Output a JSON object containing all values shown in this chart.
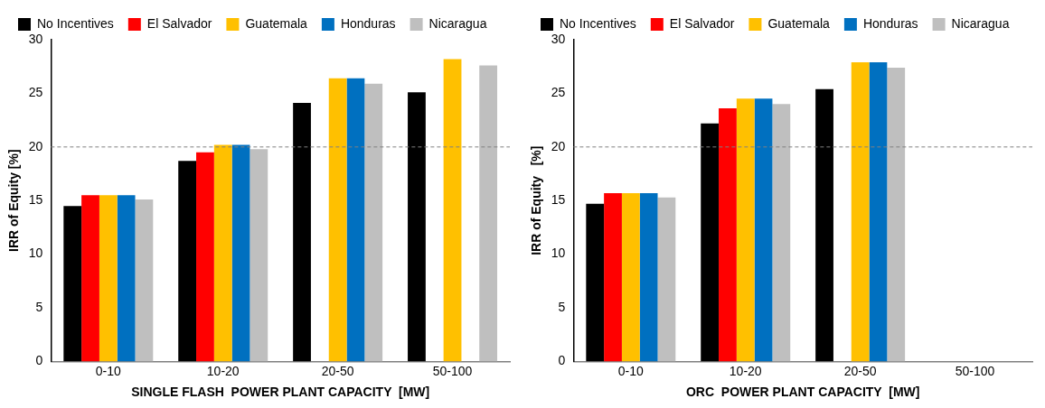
{
  "chart_data": [
    {
      "type": "bar",
      "categories": [
        "0-10",
        "10-20",
        "20-50",
        "50-100"
      ],
      "xlabel": "SINGLE FLASH  POWER PLANT CAPACITY  [MW]",
      "ylabel": "IRR of Equity [%]",
      "ylim": [
        0,
        30
      ],
      "yticks": [
        0,
        5,
        10,
        15,
        20,
        25,
        30
      ],
      "grid": false,
      "legend": "top",
      "series": [
        {
          "name": "No Incentives",
          "color": "#000000",
          "values": [
            14.5,
            18.7,
            24.1,
            25.1
          ]
        },
        {
          "name": "El Salvador",
          "color": "#ff0000",
          "values": [
            15.5,
            19.5,
            null,
            null
          ]
        },
        {
          "name": "Guatemala",
          "color": "#ffc000",
          "values": [
            15.5,
            20.2,
            26.4,
            28.2
          ]
        },
        {
          "name": "Honduras",
          "color": "#0070c0",
          "values": [
            15.5,
            20.2,
            26.4,
            null
          ]
        },
        {
          "name": "Nicaragua",
          "color": "#bfbfbf",
          "values": [
            15.1,
            19.8,
            25.9,
            27.6
          ]
        }
      ],
      "ref_lines": [
        {
          "axis": "y",
          "value": 20,
          "color": "#808080",
          "line_style": "dashed"
        }
      ]
    },
    {
      "type": "bar",
      "categories": [
        "0-10",
        "10-20",
        "20-50",
        "50-100"
      ],
      "xlabel": "ORC  POWER PLANT CAPACITY  [MW]",
      "ylabel": "IRR of Equity   [%]",
      "ylim": [
        0,
        30
      ],
      "yticks": [
        0,
        5,
        10,
        15,
        20,
        25,
        30
      ],
      "grid": false,
      "legend": "top",
      "series": [
        {
          "name": "No Incentives",
          "color": "#000000",
          "values": [
            14.7,
            22.2,
            25.4,
            null
          ]
        },
        {
          "name": "El Salvador",
          "color": "#ff0000",
          "values": [
            15.7,
            23.6,
            null,
            null
          ]
        },
        {
          "name": "Guatemala",
          "color": "#ffc000",
          "values": [
            15.7,
            24.5,
            27.9,
            null
          ]
        },
        {
          "name": "Honduras",
          "color": "#0070c0",
          "values": [
            15.7,
            24.5,
            27.9,
            null
          ]
        },
        {
          "name": "Nicaragua",
          "color": "#bfbfbf",
          "values": [
            15.3,
            24.0,
            27.4,
            null
          ]
        }
      ],
      "ref_lines": [
        {
          "axis": "y",
          "value": 20,
          "color": "#808080",
          "line_style": "dashed"
        }
      ]
    }
  ]
}
